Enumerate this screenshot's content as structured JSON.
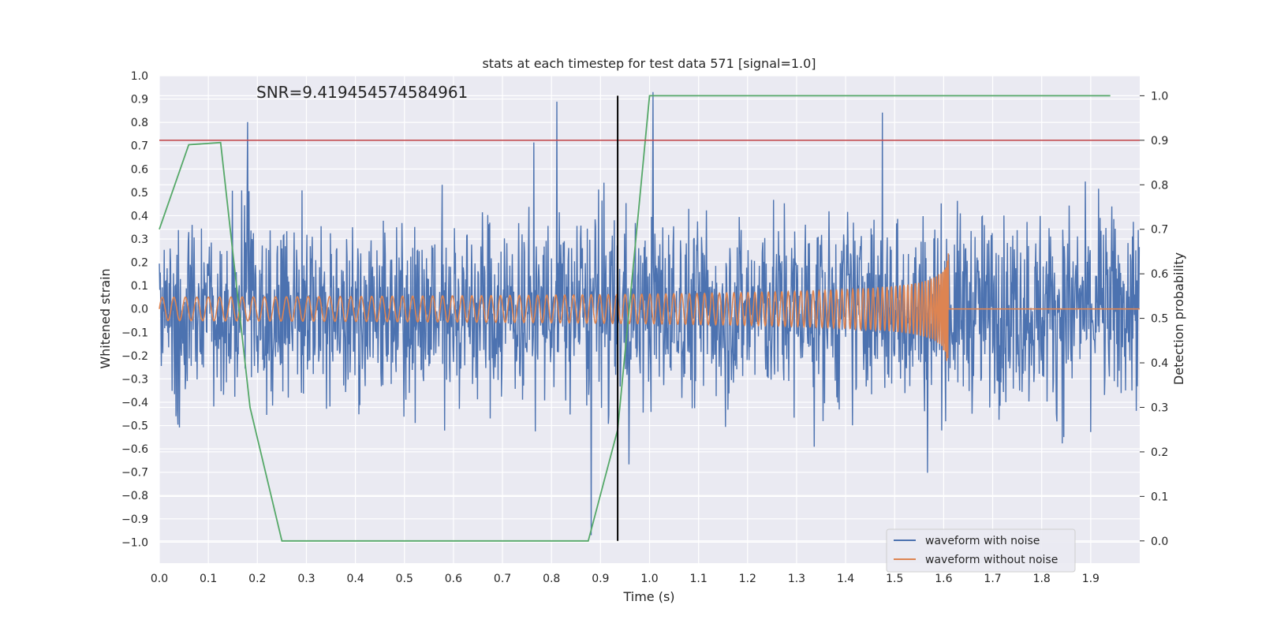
{
  "chart_data": {
    "type": "line",
    "title": "stats at each timestep for test data 571 [signal=1.0]",
    "annotation": "SNR=9.419454574584961",
    "xlabel": "Time (s)",
    "ylabel_left": "Whitened strain",
    "ylabel_right": "Detection probability",
    "xlim": [
      0.0,
      2.0
    ],
    "ylim_left": [
      -1.09,
      1.0
    ],
    "ylim_right": [
      -0.05,
      1.045
    ],
    "x_ticks": [
      "0.0",
      "0.1",
      "0.2",
      "0.3",
      "0.4",
      "0.5",
      "0.6",
      "0.7",
      "0.8",
      "0.9",
      "1.0",
      "1.1",
      "1.2",
      "1.3",
      "1.4",
      "1.5",
      "1.6",
      "1.7",
      "1.8",
      "1.9"
    ],
    "y_left_ticks": [
      "1.0",
      "0.9",
      "0.8",
      "0.7",
      "0.6",
      "0.5",
      "0.4",
      "0.3",
      "0.2",
      "0.1",
      "0.0",
      "−0.1",
      "−0.2",
      "−0.3",
      "−0.4",
      "−0.5",
      "−0.6",
      "−0.7",
      "−0.8",
      "−0.9",
      "−1.0"
    ],
    "y_right_ticks": [
      "1.0",
      "0.9",
      "0.8",
      "0.7",
      "0.6",
      "0.5",
      "0.4",
      "0.3",
      "0.2",
      "0.1",
      "0.0"
    ],
    "threshold_prob": 0.9,
    "marker_time": 0.935,
    "chirp_end_time": 1.61,
    "detection_probability": {
      "x": [
        0.0,
        0.06,
        0.125,
        0.185,
        0.25,
        0.3,
        0.875,
        0.935,
        1.0,
        1.06,
        1.94
      ],
      "y": [
        0.7,
        0.89,
        0.895,
        0.3,
        0.0,
        0.0,
        0.0,
        0.25,
        1.0,
        1.0,
        1.0
      ]
    },
    "series": [
      {
        "name": "waveform with noise",
        "color": "#4c72b0",
        "amplitude": "~±0.5 (peaks ~±0.9)"
      },
      {
        "name": "waveform without noise",
        "color": "#dd8452",
        "amplitude": "0.05 rising to 0.25 at merger ~1.61 s, then 0"
      },
      {
        "name": "detection probability",
        "color": "#55a868"
      },
      {
        "name": "threshold",
        "color": "#c44e52"
      },
      {
        "name": "time marker",
        "color": "#000000"
      }
    ],
    "legend": [
      "waveform with noise",
      "waveform without noise"
    ],
    "legend_position": "bottom-right"
  }
}
